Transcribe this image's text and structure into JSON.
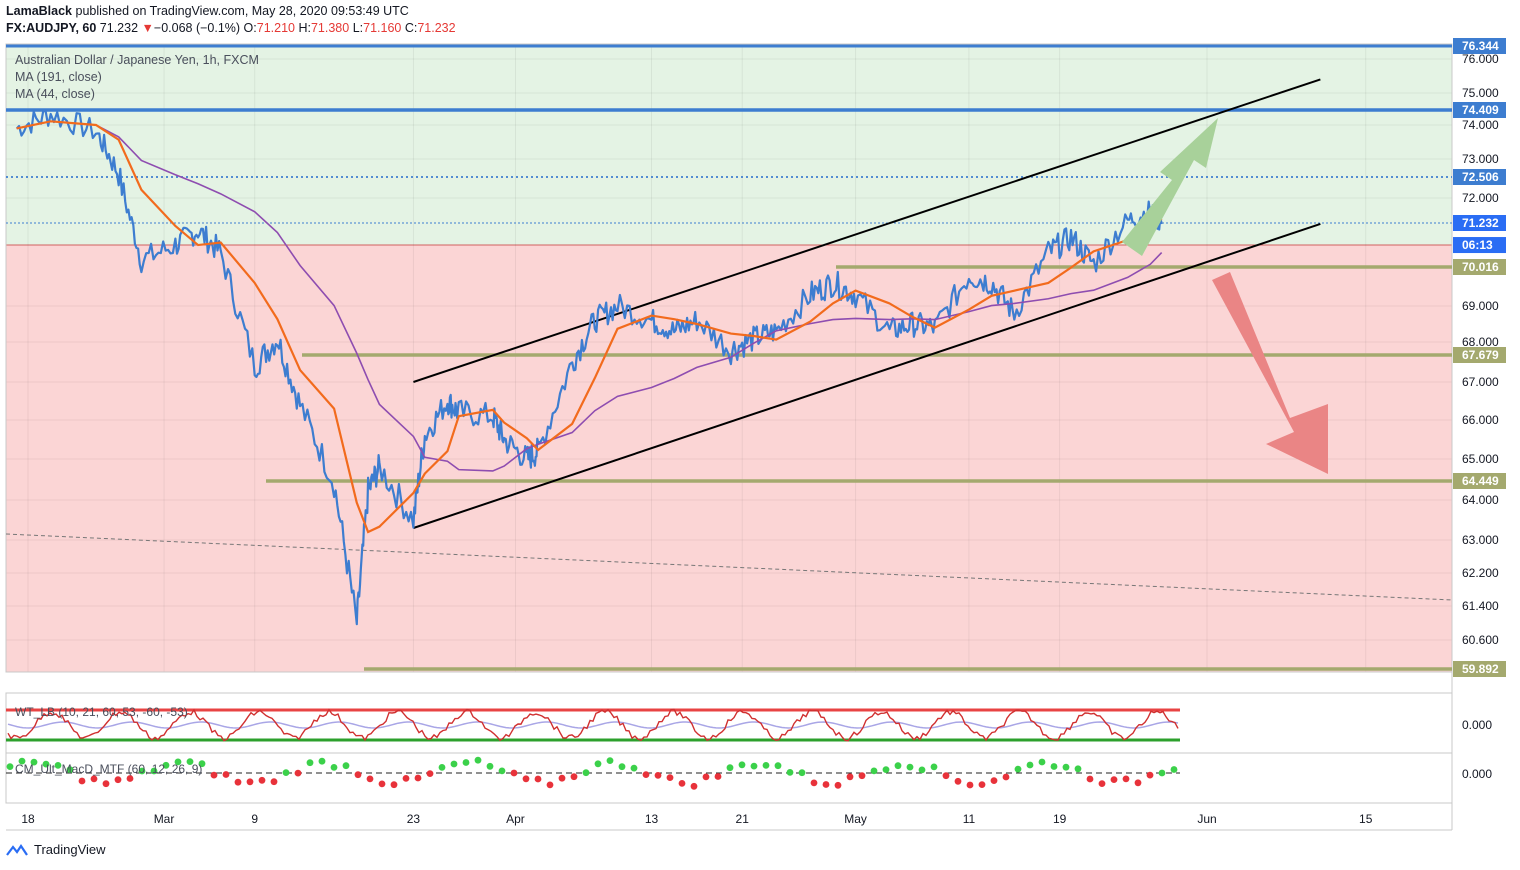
{
  "header": {
    "author": "LamaBlack",
    "published": "published on TradingView.com, May 28, 2020 09:53:49 UTC",
    "symbol": "FX:AUDJPY, 60",
    "last": "71.232",
    "change_arrow": "▼",
    "change": "−0.068 (−0.1%)",
    "o_label": "O:",
    "o": "71.210",
    "h_label": "H:",
    "h": "71.380",
    "l_label": "L:",
    "l": "71.160",
    "c_label": "C:",
    "c": "71.232"
  },
  "legend": {
    "title": "Australian Dollar / Japanese Yen, 1h, FXCM",
    "ma1": "MA (191, close)",
    "ma2": "MA (44, close)"
  },
  "footer": {
    "brand": "TradingView"
  },
  "colors": {
    "price": "#3d7dd0",
    "ma44": "#f26b1d",
    "ma191": "#8e4db0",
    "green_zone": "#e4f3e4",
    "red_zone": "#fbd5d5",
    "level": "#a4a96e",
    "blue_level": "#3d7dd0",
    "channel": "#000000",
    "up_arrow": "#a8d19a",
    "down_arrow": "#ea8585"
  },
  "chart_data": {
    "type": "line",
    "title": "Australian Dollar / Japanese Yen, 1h, FXCM",
    "price_axis_ticks": [
      "76.000",
      "75.000",
      "74.000",
      "73.000",
      "72.000",
      "69.000",
      "68.000",
      "67.000",
      "66.000",
      "65.000",
      "64.000",
      "63.000",
      "62.200",
      "61.400",
      "60.600",
      "0.000",
      "0.000"
    ],
    "time_axis_ticks": [
      "18",
      "Mar",
      "9",
      "23",
      "Apr",
      "13",
      "21",
      "May",
      "11",
      "19",
      "Jun",
      "15"
    ],
    "price_labels": [
      {
        "text": "76.344",
        "value": 76.344
      },
      {
        "text": "74.409",
        "value": 74.409
      },
      {
        "text": "72.506",
        "value": 72.506
      },
      {
        "text": "71.232",
        "value": 71.232
      },
      {
        "text": "06:13",
        "value": 70.6
      },
      {
        "text": "70.016",
        "value": 70.016
      },
      {
        "text": "67.679",
        "value": 67.679
      },
      {
        "text": "64.449",
        "value": 64.449
      },
      {
        "text": "59.892",
        "value": 59.892
      }
    ],
    "horizontal_levels": [
      74.409,
      72.506,
      71.232,
      70.016,
      67.679,
      64.449,
      59.892
    ],
    "channel": {
      "upper": [
        {
          "x": "2020-03-23",
          "y": 67.0
        },
        {
          "x": "2020-06-11",
          "y": 75.4
        }
      ],
      "lower": [
        {
          "x": "2020-03-23",
          "y": 63.3
        },
        {
          "x": "2020-06-11",
          "y": 71.2
        }
      ]
    },
    "series": [
      {
        "name": "AUDJPY",
        "x": [
          "02-17",
          "02-20",
          "02-24",
          "02-26",
          "02-28",
          "03-02",
          "03-04",
          "03-06",
          "03-09",
          "03-11",
          "03-13",
          "03-16",
          "03-18",
          "03-19",
          "03-20",
          "03-23",
          "03-24",
          "03-26",
          "03-27",
          "03-30",
          "03-31",
          "04-02",
          "04-03",
          "04-06",
          "04-08",
          "04-10",
          "04-13",
          "04-15",
          "04-17",
          "04-20",
          "04-22",
          "04-24",
          "04-27",
          "04-29",
          "05-01",
          "05-04",
          "05-06",
          "05-08",
          "05-11",
          "05-13",
          "05-15",
          "05-18",
          "05-20",
          "05-22",
          "05-25",
          "05-27",
          "05-28"
        ],
        "values": [
          73.9,
          74.3,
          73.8,
          72.6,
          70.2,
          70.6,
          71.0,
          70.4,
          67.4,
          68.1,
          66.4,
          64.4,
          61.0,
          64.2,
          64.8,
          63.5,
          65.6,
          66.5,
          66.2,
          66.1,
          65.5,
          65.0,
          65.2,
          67.5,
          68.6,
          69.0,
          68.6,
          68.3,
          68.6,
          67.8,
          68.1,
          68.3,
          69.3,
          69.6,
          69.3,
          68.3,
          68.5,
          68.4,
          69.8,
          69.6,
          68.8,
          70.4,
          70.8,
          70.1,
          71.3,
          71.6,
          71.2
        ]
      },
      {
        "name": "MA (191, close)"
      },
      {
        "name": "MA (44, close)"
      }
    ],
    "indicators": [
      {
        "name": "WT_LB (10, 21, 60, 53, -60, -53)",
        "zero": "0.000"
      },
      {
        "name": "CM_Ult_MacD_MTF (60, 12, 26, 9)",
        "zero": "0.000"
      }
    ]
  }
}
